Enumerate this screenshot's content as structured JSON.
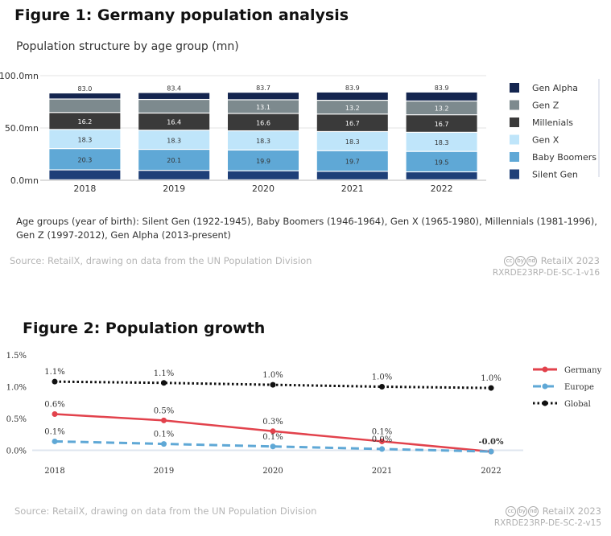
{
  "figure1": {
    "title": "Figure 1: Germany population analysis",
    "subtitle": "Population structure by age group (mn)",
    "note": "Age groups (year of birth): Silent Gen (1922-1945), Baby Boomers (1946-1964), Gen X (1965-1980), Millennials (1981-1996), Gen Z (1997-2012), Gen Alpha (2013-present)",
    "source": "Source: RetailX, drawing on data from the UN Population Division",
    "brand": "RetailX 2023",
    "code": "RXRDE23RP-DE-SC-1-v16",
    "license_glyphs": [
      "cc",
      "by",
      "nd"
    ]
  },
  "figure2": {
    "title": "Figure 2: Population growth",
    "source": "Source: RetailX, drawing on data from the UN Population Division",
    "brand": "RetailX 2023",
    "code": "RXRDE23RP-DE-SC-2-v15",
    "license_glyphs": [
      "cc",
      "by",
      "nd"
    ]
  },
  "chart_data": [
    {
      "type": "bar",
      "stacked": true,
      "title": "Population structure by age group (mn)",
      "categories": [
        "2018",
        "2019",
        "2020",
        "2021",
        "2022"
      ],
      "ylim": [
        0,
        100
      ],
      "yticks": [
        "0.0mn",
        "50.0mn",
        "100.0mn"
      ],
      "ytick_values": [
        0,
        50,
        100
      ],
      "total_labels": [
        "83.0",
        "83.4",
        "83.7",
        "83.9",
        "83.9"
      ],
      "legend_position": "right",
      "series": [
        {
          "name": "Silent Gen",
          "color": "#1e3f78",
          "values": [
            9.5,
            9.0,
            8.6,
            8.1,
            7.6
          ],
          "labels": [
            "",
            "",
            "",
            "",
            ""
          ]
        },
        {
          "name": "Baby Boomers",
          "color": "#5fa8d6",
          "values": [
            20.3,
            20.1,
            19.9,
            19.7,
            19.5
          ],
          "labels": [
            "20.3",
            "20.1",
            "19.9",
            "19.7",
            "19.5"
          ]
        },
        {
          "name": "Gen X",
          "color": "#bfe5fa",
          "values": [
            18.3,
            18.3,
            18.3,
            18.3,
            18.3
          ],
          "labels": [
            "18.3",
            "18.3",
            "18.3",
            "18.3",
            "18.3"
          ]
        },
        {
          "name": "Millenials",
          "color": "#3a3a3a",
          "values": [
            16.2,
            16.4,
            16.6,
            16.7,
            16.7
          ],
          "labels": [
            "16.2",
            "16.4",
            "16.6",
            "16.7",
            "16.7"
          ]
        },
        {
          "name": "Gen Z",
          "color": "#7d8a8e",
          "values": [
            12.9,
            13.0,
            13.1,
            13.2,
            13.2
          ],
          "labels": [
            "",
            "",
            "13.1",
            "13.2",
            "13.2"
          ]
        },
        {
          "name": "Gen Alpha",
          "color": "#14254f",
          "values": [
            5.8,
            6.6,
            7.2,
            7.9,
            8.6
          ],
          "labels": [
            "",
            "",
            "",
            "",
            ""
          ]
        }
      ]
    },
    {
      "type": "line",
      "title": "Figure 2: Population growth",
      "x": [
        "2018",
        "2019",
        "2020",
        "2021",
        "2022"
      ],
      "ylim": [
        -0.1,
        1.5
      ],
      "yticks": [
        "0.0%",
        "0.5%",
        "1.0%",
        "1.5%"
      ],
      "ytick_values": [
        0,
        0.5,
        1.0,
        1.5
      ],
      "legend_position": "right",
      "series": [
        {
          "name": "Germany",
          "color": "#e2424c",
          "style": "solid",
          "values": [
            0.57,
            0.47,
            0.3,
            0.14,
            -0.02
          ],
          "labels": [
            "0.6%",
            "0.5%",
            "0.3%",
            "0.1%",
            "-0.0%"
          ]
        },
        {
          "name": "Europe",
          "color": "#5fa8d6",
          "style": "dashed",
          "values": [
            0.14,
            0.1,
            0.06,
            0.02,
            -0.02
          ],
          "labels": [
            "0.1%",
            "0.1%",
            "0.1%",
            "0.0%",
            ""
          ]
        },
        {
          "name": "Global",
          "color": "#111111",
          "style": "dotted",
          "values": [
            1.08,
            1.06,
            1.03,
            1.0,
            0.98
          ],
          "labels": [
            "1.1%",
            "1.1%",
            "1.0%",
            "1.0%",
            "1.0%"
          ]
        }
      ]
    }
  ]
}
